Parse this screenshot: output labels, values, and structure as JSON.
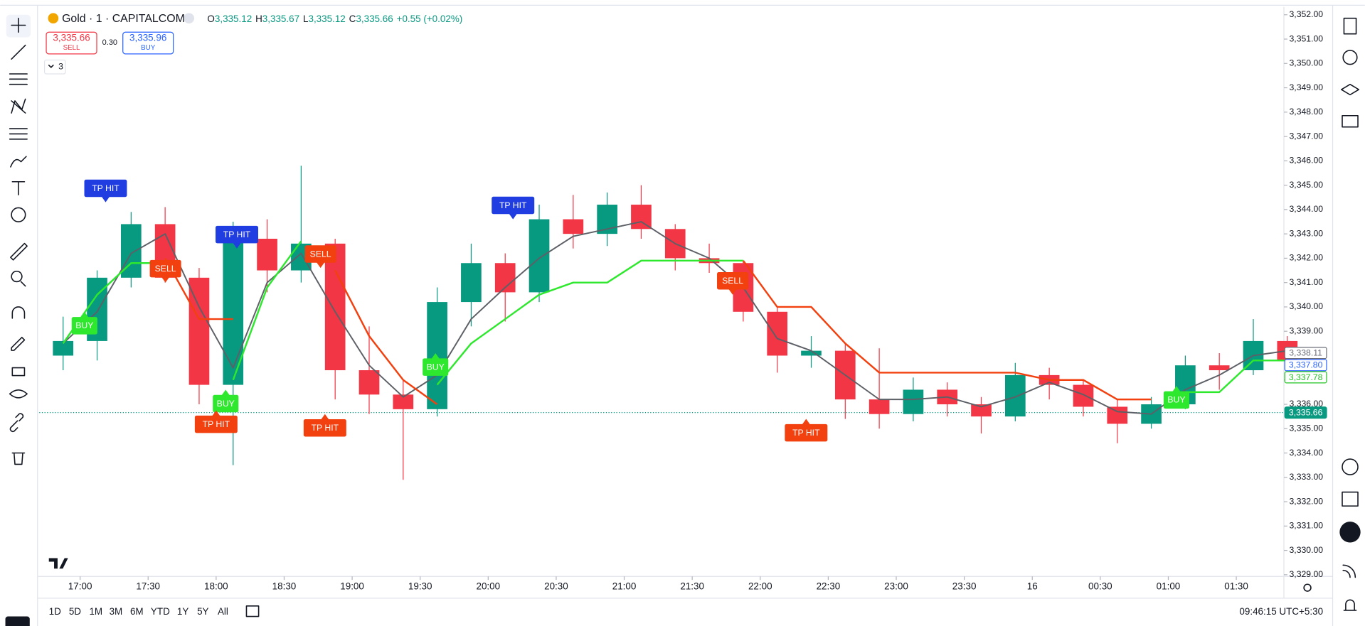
{
  "header": {
    "symbol": "Gold · 1 · CAPITALCOM",
    "ohlc": [
      {
        "label": "O",
        "value": "3,335.12"
      },
      {
        "label": "H",
        "value": "3,335.67"
      },
      {
        "label": "L",
        "value": "3,335.12"
      },
      {
        "label": "C",
        "value": "3,335.66"
      }
    ],
    "change": "+0.55 (+0.02%)"
  },
  "trade": {
    "sell_price": "3,335.66",
    "sell_label": "SELL",
    "spread": "0.30",
    "buy_price": "3,335.96",
    "buy_label": "BUY"
  },
  "indicators_count": "3",
  "chart_data": {
    "type": "candlestick",
    "up_color": "#089981",
    "down_color": "#f23645",
    "open": [
      3338.0,
      3338.6,
      3341.2,
      3343.4,
      3341.2,
      3336.8,
      3342.8,
      3341.5,
      3342.6,
      3337.4,
      3336.4,
      3335.8,
      3340.2,
      3341.8,
      3340.6,
      3343.6,
      3343.0,
      3344.2,
      3343.2,
      3342.0,
      3341.8,
      3339.8,
      3338.0,
      3338.2,
      3336.2,
      3335.6,
      3336.6,
      3336.0,
      3335.5,
      3337.2,
      3336.8,
      3335.9,
      3335.2,
      3336.0,
      3337.6,
      3337.4,
      3338.6
    ],
    "high": [
      3339.6,
      3341.5,
      3343.9,
      3344.1,
      3341.6,
      3343.5,
      3343.6,
      3345.8,
      3342.8,
      3339.2,
      3337.0,
      3340.8,
      3342.6,
      3342.2,
      3344.2,
      3344.6,
      3344.7,
      3345.0,
      3343.4,
      3342.6,
      3341.9,
      3340.0,
      3338.8,
      3338.5,
      3338.3,
      3337.1,
      3336.9,
      3336.3,
      3337.7,
      3337.5,
      3337.0,
      3336.2,
      3336.3,
      3338.0,
      3338.1,
      3339.5,
      3338.8
    ],
    "low": [
      3337.4,
      3337.8,
      3340.8,
      3341.0,
      3336.0,
      3333.5,
      3340.6,
      3341.0,
      3336.2,
      3335.6,
      3332.9,
      3335.5,
      3339.2,
      3339.4,
      3340.2,
      3342.4,
      3342.5,
      3342.8,
      3341.5,
      3341.4,
      3339.4,
      3337.3,
      3337.5,
      3335.4,
      3335.0,
      3335.3,
      3335.5,
      3334.8,
      3335.3,
      3336.2,
      3335.5,
      3334.4,
      3335.0,
      3335.8,
      3336.6,
      3337.2,
      3337.4
    ],
    "close": [
      3338.6,
      3341.2,
      3343.4,
      3341.2,
      3336.8,
      3342.8,
      3341.5,
      3342.6,
      3337.4,
      3336.4,
      3335.8,
      3340.2,
      3341.8,
      3340.6,
      3343.6,
      3343.0,
      3344.2,
      3343.2,
      3342.0,
      3341.8,
      3339.8,
      3338.0,
      3338.2,
      3336.2,
      3335.6,
      3336.6,
      3336.0,
      3335.5,
      3337.2,
      3336.8,
      3335.9,
      3335.2,
      3336.0,
      3337.6,
      3337.4,
      3338.6,
      3337.8
    ],
    "lines": [
      {
        "color": "#5d6066",
        "values": [
          3338.5,
          3339.8,
          3342.2,
          3343.0,
          3340.0,
          3337.5,
          3341.0,
          3342.2,
          3339.8,
          3337.6,
          3336.3,
          3337.2,
          3339.5,
          3340.8,
          3342.0,
          3342.9,
          3343.2,
          3343.5,
          3342.6,
          3342.0,
          3340.8,
          3338.7,
          3338.2,
          3337.2,
          3336.2,
          3336.2,
          3336.3,
          3335.9,
          3336.3,
          3336.9,
          3336.4,
          3335.7,
          3335.6,
          3336.6,
          3337.2,
          3338.0,
          3338.2
        ]
      },
      {
        "color": "#2ee82e",
        "values": [
          3338.5,
          3340.5,
          3341.8,
          3341.8,
          null,
          3337.0,
          3340.8,
          3342.7,
          null,
          null,
          null,
          3336.8,
          3338.5,
          3339.5,
          3340.5,
          3341.0,
          3341.0,
          3341.9,
          3341.9,
          3341.9,
          3341.9,
          null,
          null,
          null,
          null,
          null,
          null,
          null,
          null,
          null,
          null,
          null,
          null,
          3336.5,
          3336.5,
          3337.8,
          3337.8
        ]
      },
      {
        "color": "#f2400f",
        "values": [
          null,
          null,
          null,
          3342.0,
          3339.5,
          3339.5,
          null,
          null,
          3341.5,
          3338.8,
          3337.0,
          3336.0,
          null,
          null,
          null,
          null,
          null,
          null,
          null,
          null,
          3341.9,
          3340.0,
          3340.0,
          3338.5,
          3337.3,
          3337.3,
          3337.3,
          3337.3,
          3337.3,
          3337.0,
          3337.0,
          3336.2,
          3336.2,
          null,
          null,
          null,
          null
        ]
      }
    ],
    "signals": [
      {
        "label": "TP HIT",
        "x": 1.75,
        "y": 3344.3,
        "color": "#1f3de0",
        "pos": "above"
      },
      {
        "label": "SELL",
        "x": 3.51,
        "y": 3341.0,
        "color": "#f2400f",
        "pos": "above"
      },
      {
        "label": "TP HIT",
        "x": 5.61,
        "y": 3342.4,
        "color": "#1f3de0",
        "pos": "above"
      },
      {
        "label": "BUY",
        "x": 1.13,
        "y": 3339.8,
        "color": "#2ee82e",
        "pos": "below"
      },
      {
        "label": "BUY",
        "x": 5.28,
        "y": 3336.6,
        "color": "#2ee82e",
        "pos": "below"
      },
      {
        "label": "TP HIT",
        "x": 5.0,
        "y": 3335.75,
        "color": "#f2400f",
        "pos": "below"
      },
      {
        "label": "SELL",
        "x": 8.07,
        "y": 3341.6,
        "color": "#f2400f",
        "pos": "above"
      },
      {
        "label": "TP HIT",
        "x": 8.2,
        "y": 3335.6,
        "color": "#f2400f",
        "pos": "below"
      },
      {
        "label": "BUY",
        "x": 11.45,
        "y": 3338.1,
        "color": "#2ee82e",
        "pos": "below"
      },
      {
        "label": "TP HIT",
        "x": 13.73,
        "y": 3343.6,
        "color": "#1f3de0",
        "pos": "above"
      },
      {
        "label": "SELL",
        "x": 20.19,
        "y": 3340.5,
        "color": "#f2400f",
        "pos": "above"
      },
      {
        "label": "TP HIT",
        "x": 22.35,
        "y": 3335.4,
        "color": "#f2400f",
        "pos": "below"
      },
      {
        "label": "BUY",
        "x": 33.24,
        "y": 3336.75,
        "color": "#2ee82e",
        "pos": "below"
      }
    ],
    "price_labels": [
      {
        "value": 3338.11,
        "label": "3,338.11",
        "color": "#6a6d78",
        "style": "outline"
      },
      {
        "value": 3337.8,
        "label": "3,337.80",
        "color": "#2962ff",
        "style": "outline"
      },
      {
        "value": 3337.78,
        "label": "3,337.78",
        "color": "#22c322",
        "style": "outline"
      },
      {
        "value": 3335.66,
        "label": "3,335.66",
        "color": "#089981",
        "style": "filled"
      }
    ],
    "xlim": [
      -0.2,
      36.4
    ],
    "xticks": [
      {
        "value": 1,
        "label": "17:00"
      },
      {
        "value": 3,
        "label": "17:30"
      },
      {
        "value": 5,
        "label": "18:00"
      },
      {
        "value": 7,
        "label": "18:30"
      },
      {
        "value": 9,
        "label": "19:00"
      },
      {
        "value": 11,
        "label": "19:30"
      },
      {
        "value": 13,
        "label": "20:00"
      },
      {
        "value": 15,
        "label": "20:30"
      },
      {
        "value": 17,
        "label": "21:00"
      },
      {
        "value": 19,
        "label": "21:30"
      },
      {
        "value": 21,
        "label": "22:00"
      },
      {
        "value": 23,
        "label": "22:30"
      },
      {
        "value": 25,
        "label": "23:00"
      },
      {
        "value": 27,
        "label": "23:30"
      },
      {
        "value": 29,
        "label": "16"
      },
      {
        "value": 31,
        "label": "00:30"
      },
      {
        "value": 33,
        "label": "01:00"
      },
      {
        "value": 35,
        "label": "01:30"
      }
    ],
    "ylim": [
      3328.93,
      3352.32
    ],
    "yticks": [
      {
        "value": 3329,
        "label": "3,329.00"
      },
      {
        "value": 3330,
        "label": "3,330.00"
      },
      {
        "value": 3331,
        "label": "3,331.00"
      },
      {
        "value": 3332,
        "label": "3,332.00"
      },
      {
        "value": 3333,
        "label": "3,333.00"
      },
      {
        "value": 3334,
        "label": "3,334.00"
      },
      {
        "value": 3335,
        "label": "3,335.00"
      },
      {
        "value": 3336,
        "label": "3,336.00"
      },
      {
        "value": 3337,
        "label": "3,337.00"
      },
      {
        "value": 3338,
        "label": "3,338.00"
      },
      {
        "value": 3339,
        "label": "3,339.00"
      },
      {
        "value": 3340,
        "label": "3,340.00"
      },
      {
        "value": 3341,
        "label": "3,341.00"
      },
      {
        "value": 3342,
        "label": "3,342.00"
      },
      {
        "value": 3343,
        "label": "3,343.00"
      },
      {
        "value": 3344,
        "label": "3,344.00"
      },
      {
        "value": 3345,
        "label": "3,345.00"
      },
      {
        "value": 3346,
        "label": "3,346.00"
      },
      {
        "value": 3347,
        "label": "3,347.00"
      },
      {
        "value": 3348,
        "label": "3,348.00"
      },
      {
        "value": 3349,
        "label": "3,349.00"
      },
      {
        "value": 3350,
        "label": "3,350.00"
      },
      {
        "value": 3351,
        "label": "3,351.00"
      },
      {
        "value": 3352,
        "label": "3,352.00"
      }
    ],
    "last_price": 3335.66
  },
  "timeframes": [
    "1D",
    "5D",
    "1M",
    "3M",
    "6M",
    "YTD",
    "1Y",
    "5Y",
    "All"
  ],
  "clock": "09:46:15 UTC+5:30"
}
